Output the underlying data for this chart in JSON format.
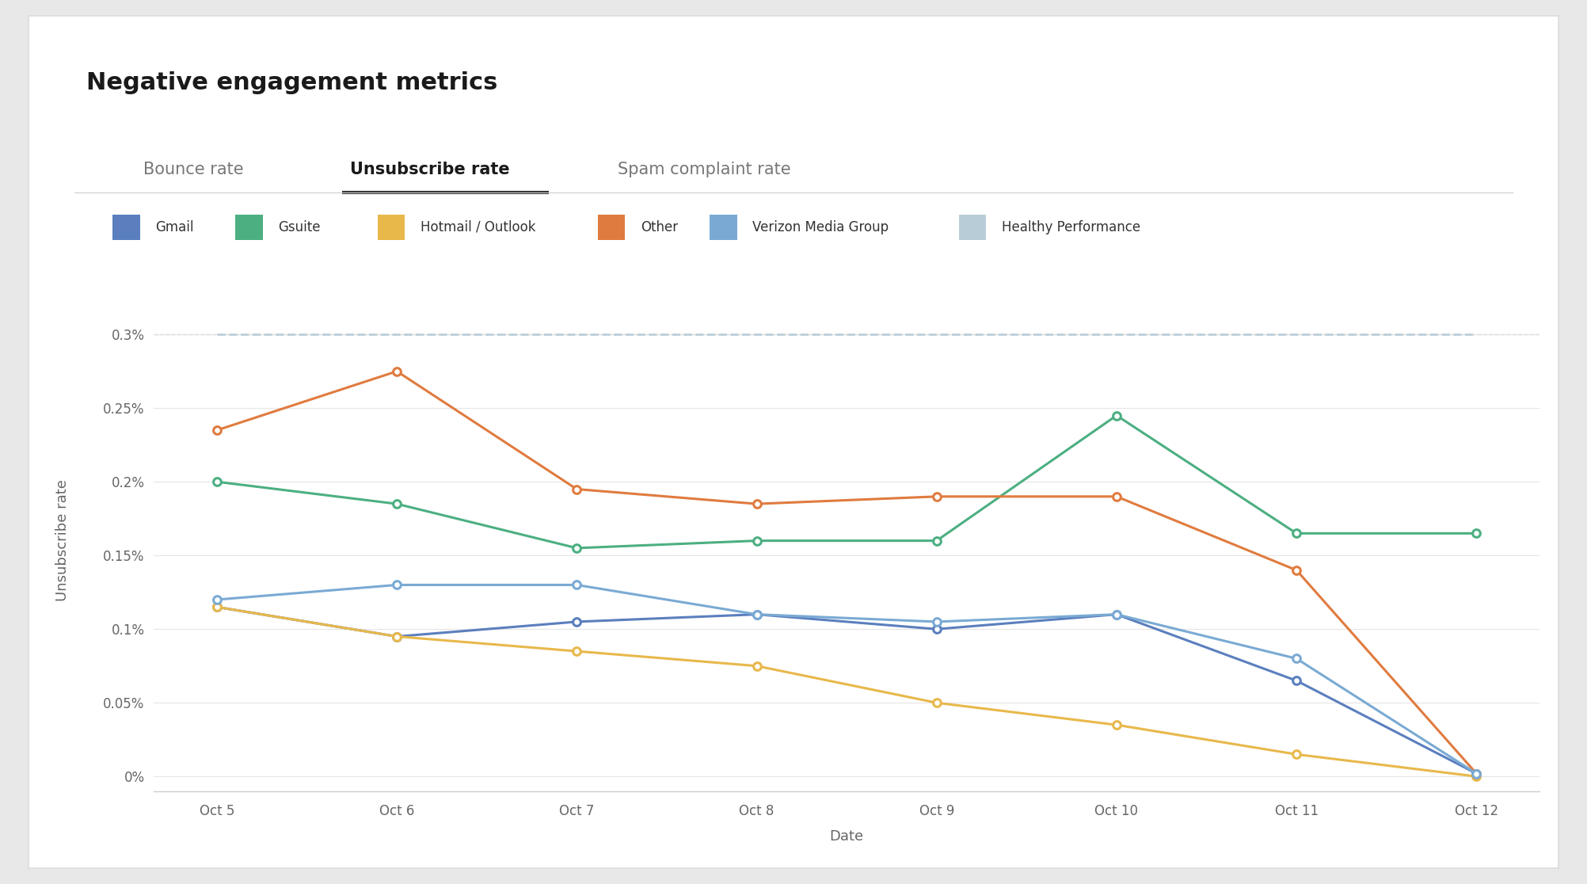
{
  "title": "Negative engagement metrics",
  "tab_labels": [
    "Bounce rate",
    "Unsubscribe rate",
    "Spam complaint rate"
  ],
  "active_tab": 1,
  "xlabel": "Date",
  "ylabel": "Unsubscribe rate",
  "x_labels": [
    "Oct 5",
    "Oct 6",
    "Oct 7",
    "Oct 8",
    "Oct 9",
    "Oct 10",
    "Oct 11",
    "Oct 12"
  ],
  "ytick_vals": [
    0.0,
    0.05,
    0.1,
    0.15,
    0.2,
    0.25,
    0.3
  ],
  "ytick_labels": [
    "0%",
    "0.05%",
    "0.1%",
    "0.15%",
    "0.2%",
    "0.25%",
    "0.3%"
  ],
  "ylim": [
    -0.01,
    0.335
  ],
  "series": [
    {
      "name": "Gmail",
      "color": "#5b7fbe",
      "values": [
        0.115,
        0.095,
        0.105,
        0.11,
        0.1,
        0.11,
        0.065,
        0.002
      ]
    },
    {
      "name": "Gsuite",
      "color": "#4caf82",
      "values": [
        0.2,
        0.185,
        0.155,
        0.16,
        0.16,
        0.245,
        0.165,
        0.165
      ]
    },
    {
      "name": "Hotmail / Outlook",
      "color": "#e8b84b",
      "values": [
        0.115,
        0.095,
        0.085,
        0.075,
        0.05,
        0.035,
        0.015,
        0.0
      ]
    },
    {
      "name": "Other",
      "color": "#e07b3f",
      "values": [
        0.235,
        0.275,
        0.195,
        0.185,
        0.19,
        0.19,
        0.14,
        0.002
      ]
    },
    {
      "name": "Verizon Media Group",
      "color": "#7aaad4",
      "values": [
        0.12,
        0.13,
        0.13,
        0.11,
        0.105,
        0.11,
        0.08,
        0.002
      ]
    },
    {
      "name": "Healthy Performance",
      "color": "#b8ccd8",
      "values": [
        0.3,
        0.3,
        0.3,
        0.3,
        0.3,
        0.3,
        0.3,
        0.3
      ]
    }
  ],
  "bg_color": "#e8e8e8",
  "card_color": "#ffffff",
  "title_fontsize": 22,
  "axis_label_fontsize": 13,
  "tick_fontsize": 12,
  "legend_fontsize": 12,
  "tab_fontsize": 15
}
